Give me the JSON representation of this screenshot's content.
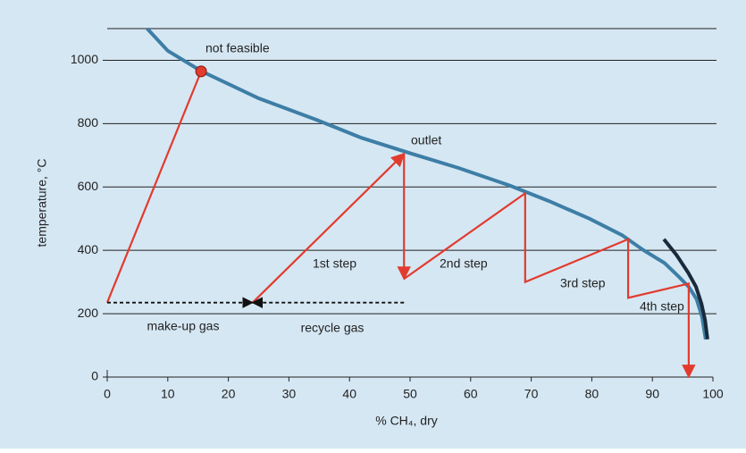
{
  "chart_data": {
    "type": "line",
    "xlabel": "% CH₄, dry",
    "ylabel": "temperature, °C",
    "xlim": [
      0,
      100
    ],
    "ylim": [
      0,
      1100
    ],
    "xticks": [
      0,
      10,
      20,
      30,
      40,
      50,
      60,
      70,
      80,
      90,
      100
    ],
    "yticks": [
      0,
      200,
      400,
      600,
      800,
      1000
    ],
    "grid": true,
    "series": [
      {
        "color": "#3d7ea6",
        "x": [
          6.6,
          10,
          15.5,
          25,
          34.7,
          42,
          50.1,
          58,
          66.4,
          73,
          79.6,
          85,
          88.5,
          92,
          94.4,
          96,
          97.3,
          98.2,
          98.8
        ],
        "values": [
          1100,
          1030,
          966,
          880,
          811,
          755,
          706,
          660,
          605,
          555,
          500,
          448,
          401,
          360,
          316,
          285,
          246,
          190,
          119
        ]
      },
      {
        "color": "#1a2a3a",
        "x": [
          91.9,
          94,
          95.9,
          97.2,
          98.1,
          98.7,
          99.1
        ],
        "values": [
          435,
          385,
          330,
          285,
          232,
          180,
          119
        ]
      },
      {
        "color": "#e23b2e",
        "x": [
          0,
          15.5
        ],
        "values": [
          235,
          965
        ]
      },
      {
        "color": "#e23b2e",
        "x": [
          24,
          49
        ],
        "values": [
          235,
          705
        ],
        "arrow": true
      },
      {
        "color": "#e23b2e",
        "x": [
          49,
          49
        ],
        "values": [
          705,
          310
        ],
        "arrow": true
      },
      {
        "color": "#e23b2e",
        "x": [
          49,
          69,
          69,
          86,
          86,
          96,
          96
        ],
        "values": [
          310,
          580,
          300,
          435,
          250,
          295,
          0
        ],
        "arrow": true
      },
      {
        "color": "#111111",
        "x": [
          0,
          24
        ],
        "values": [
          235,
          235
        ],
        "arrow": true,
        "dash": true
      },
      {
        "color": "#111111",
        "x": [
          49,
          24
        ],
        "values": [
          235,
          235
        ],
        "arrow": true,
        "dash": true
      }
    ],
    "points": {
      "color": "#e23b2e",
      "x": [
        15.5
      ],
      "values": [
        965
      ]
    },
    "annotations": [
      "not feasible",
      "outlet",
      "1st step",
      "2nd step",
      "3rd step",
      "4th step",
      "make-up gas",
      "recycle gas"
    ]
  }
}
